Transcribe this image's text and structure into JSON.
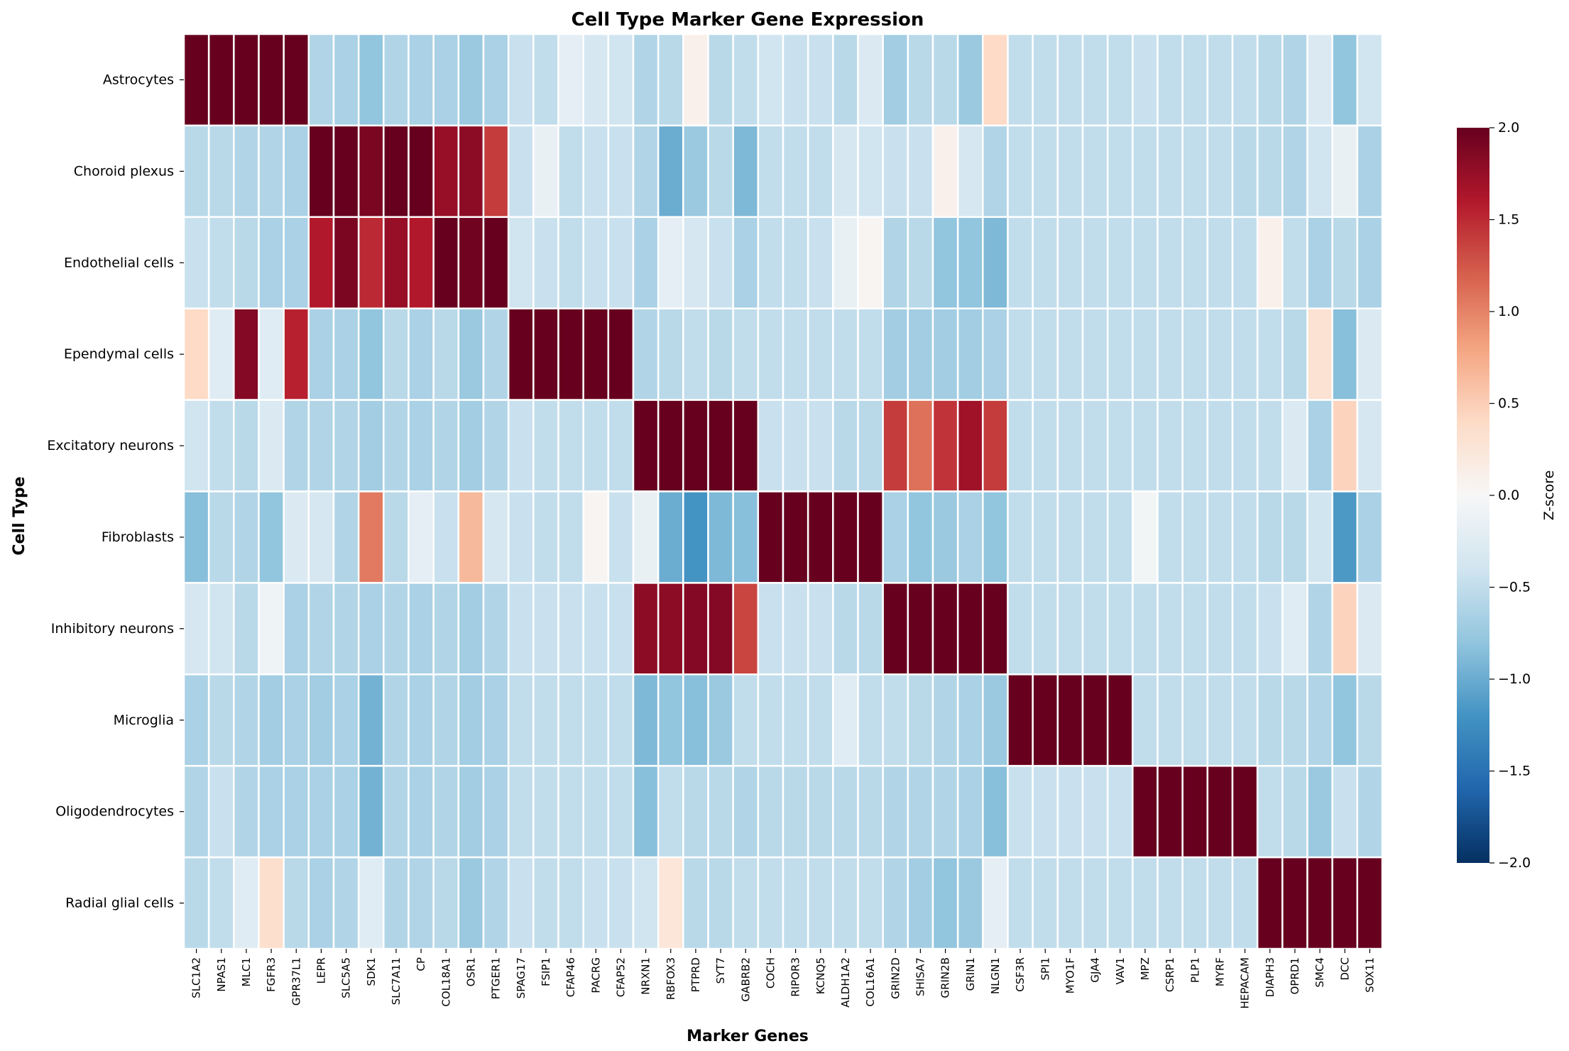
{
  "chart_data": {
    "type": "heatmap",
    "title": "Cell Type Marker Gene Expression",
    "xlabel": "Marker Genes",
    "ylabel": "Cell Type",
    "colorbar_label": "Z-score",
    "colormap": "RdBu_r",
    "vmin": -2.0,
    "vmax": 2.0,
    "colorbar_ticks": [
      "2.0",
      "1.5",
      "1.0",
      "0.5",
      "0.0",
      "−0.5",
      "−1.0",
      "−1.5",
      "−2.0"
    ],
    "colorbar_tick_values": [
      2.0,
      1.5,
      1.0,
      0.5,
      0.0,
      -0.5,
      -1.0,
      -1.5,
      -2.0
    ],
    "rows": [
      "Astrocytes",
      "Choroid plexus",
      "Endothelial cells",
      "Ependymal cells",
      "Excitatory neurons",
      "Fibroblasts",
      "Inhibitory neurons",
      "Microglia",
      "Oligodendrocytes",
      "Radial glial cells"
    ],
    "columns": [
      "SLC1A2",
      "NPAS1",
      "MLC1",
      "FGFR3",
      "GPR37L1",
      "LEPR",
      "SLC5A5",
      "SDK1",
      "SLC7A11",
      "CP",
      "COL18A1",
      "OSR1",
      "PTGER1",
      "SPAG17",
      "FSIP1",
      "CFAP46",
      "PACRG",
      "CFAP52",
      "NRXN1",
      "RBFOX3",
      "PTPRD",
      "SYT7",
      "GABRB2",
      "COCH",
      "RIPOR3",
      "KCNQ5",
      "ALDH1A2",
      "COL16A1",
      "GRIN2D",
      "SHISA7",
      "GRIN2B",
      "GRIN1",
      "NLGN1",
      "CSF3R",
      "SPI1",
      "MYO1F",
      "GJA4",
      "VAV1",
      "MPZ",
      "CSRP1",
      "PLP1",
      "MYRF",
      "HEPACAM",
      "DIAPH3",
      "OPRD1",
      "SMC4",
      "DCC",
      "SOX11"
    ],
    "values": [
      [
        2.0,
        2.0,
        2.0,
        2.0,
        2.0,
        -0.6,
        -0.65,
        -0.8,
        -0.6,
        -0.65,
        -0.65,
        -0.75,
        -0.65,
        -0.45,
        -0.5,
        -0.2,
        -0.35,
        -0.4,
        -0.6,
        -0.55,
        0.1,
        -0.55,
        -0.5,
        -0.4,
        -0.45,
        -0.45,
        -0.55,
        -0.3,
        -0.7,
        -0.55,
        -0.55,
        -0.75,
        0.4,
        -0.5,
        -0.5,
        -0.5,
        -0.5,
        -0.5,
        -0.45,
        -0.5,
        -0.5,
        -0.5,
        -0.5,
        -0.55,
        -0.6,
        -0.3,
        -0.8,
        -0.4
      ],
      [
        -0.55,
        -0.55,
        -0.6,
        -0.6,
        -0.65,
        2.0,
        2.0,
        1.9,
        2.0,
        2.0,
        1.75,
        1.8,
        1.4,
        -0.45,
        -0.15,
        -0.5,
        -0.45,
        -0.45,
        -0.6,
        -1.0,
        -0.75,
        -0.55,
        -0.9,
        -0.5,
        -0.5,
        -0.5,
        -0.35,
        -0.4,
        -0.45,
        -0.45,
        0.1,
        -0.35,
        -0.6,
        -0.5,
        -0.5,
        -0.5,
        -0.5,
        -0.5,
        -0.5,
        -0.5,
        -0.5,
        -0.5,
        -0.55,
        -0.55,
        -0.6,
        -0.4,
        -0.15,
        -0.65
      ],
      [
        -0.45,
        -0.5,
        -0.55,
        -0.65,
        -0.65,
        1.6,
        1.9,
        1.5,
        1.75,
        1.6,
        2.0,
        1.95,
        2.0,
        -0.4,
        -0.45,
        -0.5,
        -0.45,
        -0.45,
        -0.65,
        -0.2,
        -0.35,
        -0.45,
        -0.65,
        -0.5,
        -0.5,
        -0.45,
        -0.15,
        0.05,
        -0.6,
        -0.55,
        -0.8,
        -0.8,
        -0.9,
        -0.5,
        -0.5,
        -0.5,
        -0.5,
        -0.5,
        -0.5,
        -0.5,
        -0.5,
        -0.5,
        -0.5,
        0.1,
        -0.5,
        -0.65,
        -0.55,
        -0.65
      ],
      [
        0.4,
        -0.25,
        1.85,
        -0.25,
        1.55,
        -0.65,
        -0.65,
        -0.8,
        -0.55,
        -0.65,
        -0.55,
        -0.75,
        -0.6,
        2.0,
        2.0,
        2.0,
        2.0,
        2.0,
        -0.6,
        -0.55,
        -0.5,
        -0.55,
        -0.5,
        -0.5,
        -0.5,
        -0.5,
        -0.5,
        -0.5,
        -0.7,
        -0.7,
        -0.7,
        -0.7,
        -0.65,
        -0.5,
        -0.5,
        -0.5,
        -0.5,
        -0.5,
        -0.5,
        -0.5,
        -0.5,
        -0.5,
        -0.5,
        -0.5,
        -0.55,
        0.3,
        -0.85,
        -0.3
      ],
      [
        -0.4,
        -0.5,
        -0.55,
        -0.3,
        -0.6,
        -0.6,
        -0.6,
        -0.7,
        -0.6,
        -0.65,
        -0.6,
        -0.7,
        -0.6,
        -0.45,
        -0.5,
        -0.5,
        -0.5,
        -0.5,
        2.0,
        2.0,
        2.0,
        2.0,
        2.0,
        -0.45,
        -0.45,
        -0.45,
        -0.55,
        -0.55,
        1.4,
        1.1,
        1.45,
        1.7,
        1.4,
        -0.5,
        -0.5,
        -0.5,
        -0.5,
        -0.5,
        -0.5,
        -0.5,
        -0.5,
        -0.5,
        -0.5,
        -0.5,
        -0.3,
        -0.65,
        0.45,
        -0.35
      ],
      [
        -0.85,
        -0.55,
        -0.6,
        -0.8,
        -0.3,
        -0.35,
        -0.6,
        1.05,
        -0.55,
        -0.2,
        -0.45,
        0.65,
        -0.35,
        -0.45,
        -0.5,
        -0.5,
        0.05,
        -0.45,
        -0.15,
        -1.0,
        -1.2,
        -0.9,
        -0.85,
        2.0,
        2.0,
        2.0,
        2.0,
        2.0,
        -0.65,
        -0.8,
        -0.75,
        -0.65,
        -0.8,
        -0.5,
        -0.5,
        -0.5,
        -0.5,
        -0.5,
        -0.05,
        -0.5,
        -0.5,
        -0.5,
        -0.5,
        -0.55,
        -0.55,
        -0.4,
        -1.15,
        -0.65
      ],
      [
        -0.35,
        -0.4,
        -0.55,
        -0.1,
        -0.65,
        -0.6,
        -0.6,
        -0.65,
        -0.6,
        -0.65,
        -0.6,
        -0.7,
        -0.6,
        -0.45,
        -0.45,
        -0.45,
        -0.45,
        -0.45,
        1.8,
        1.8,
        1.85,
        1.85,
        1.35,
        -0.45,
        -0.45,
        -0.45,
        -0.55,
        -0.55,
        2.0,
        2.0,
        2.0,
        2.0,
        2.0,
        -0.5,
        -0.5,
        -0.5,
        -0.5,
        -0.5,
        -0.5,
        -0.5,
        -0.5,
        -0.5,
        -0.5,
        -0.45,
        -0.25,
        -0.6,
        0.45,
        -0.3
      ],
      [
        -0.65,
        -0.55,
        -0.6,
        -0.7,
        -0.65,
        -0.7,
        -0.65,
        -0.95,
        -0.6,
        -0.65,
        -0.6,
        -0.7,
        -0.65,
        -0.5,
        -0.5,
        -0.5,
        -0.5,
        -0.5,
        -0.9,
        -0.8,
        -0.85,
        -0.75,
        -0.5,
        -0.5,
        -0.5,
        -0.5,
        -0.25,
        -0.5,
        -0.5,
        -0.55,
        -0.6,
        -0.65,
        -0.75,
        2.0,
        2.0,
        2.0,
        2.0,
        2.0,
        -0.5,
        -0.5,
        -0.5,
        -0.5,
        -0.5,
        -0.55,
        -0.55,
        -0.6,
        -0.8,
        -0.55
      ],
      [
        -0.6,
        -0.45,
        -0.6,
        -0.65,
        -0.65,
        -0.65,
        -0.65,
        -0.95,
        -0.6,
        -0.65,
        -0.6,
        -0.7,
        -0.65,
        -0.5,
        -0.5,
        -0.5,
        -0.5,
        -0.5,
        -0.85,
        -0.5,
        -0.55,
        -0.55,
        -0.6,
        -0.55,
        -0.55,
        -0.55,
        -0.55,
        -0.55,
        -0.6,
        -0.6,
        -0.6,
        -0.65,
        -0.85,
        -0.45,
        -0.45,
        -0.45,
        -0.45,
        -0.45,
        2.0,
        2.0,
        2.0,
        2.0,
        2.0,
        -0.5,
        -0.55,
        -0.75,
        -0.45,
        -0.6
      ],
      [
        -0.55,
        -0.5,
        -0.25,
        0.35,
        -0.55,
        -0.65,
        -0.6,
        -0.25,
        -0.6,
        -0.6,
        -0.55,
        -0.75,
        -0.6,
        -0.45,
        -0.5,
        -0.5,
        -0.45,
        -0.45,
        -0.4,
        0.25,
        -0.55,
        -0.55,
        -0.5,
        -0.5,
        -0.5,
        -0.5,
        -0.5,
        -0.5,
        -0.6,
        -0.7,
        -0.8,
        -0.75,
        -0.2,
        -0.5,
        -0.5,
        -0.5,
        -0.5,
        -0.5,
        -0.5,
        -0.5,
        -0.5,
        -0.5,
        -0.5,
        2.0,
        2.0,
        2.0,
        2.0,
        2.0
      ]
    ]
  }
}
